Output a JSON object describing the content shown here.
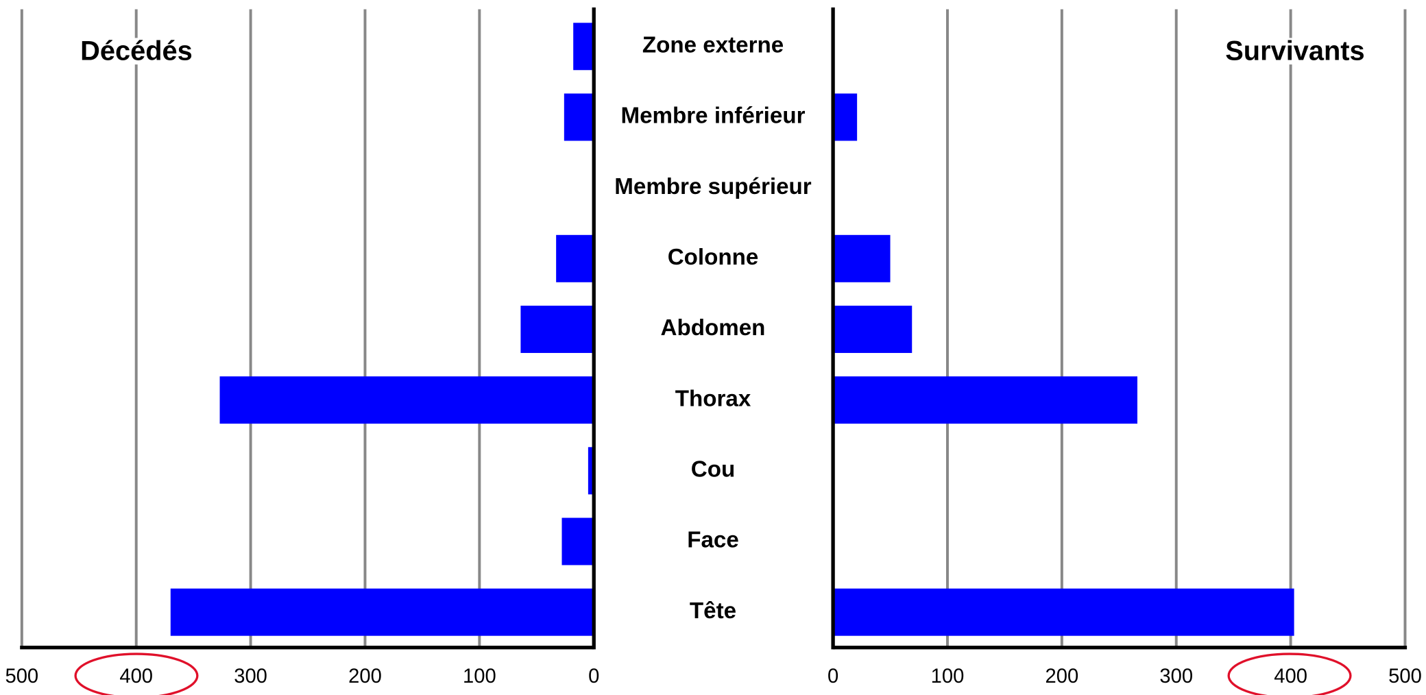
{
  "chart_data": {
    "type": "butterfly",
    "categories": [
      "Zone externe",
      "Membre inférieur",
      "Membre supérieur",
      "Colonne",
      "Abdomen",
      "Thorax",
      "Cou",
      "Face",
      "Tête"
    ],
    "series": [
      {
        "name": "Décédés",
        "color": "#0000ff",
        "values": [
          18,
          26,
          0,
          33,
          64,
          327,
          5,
          28,
          370
        ]
      },
      {
        "name": "Survivants",
        "color": "#0000ff",
        "values": [
          0,
          21,
          0,
          50,
          69,
          266,
          0,
          0,
          403
        ]
      }
    ],
    "xlim": [
      0,
      500
    ],
    "xticks": [
      0,
      100,
      200,
      300,
      400,
      500
    ],
    "grid": true
  }
}
